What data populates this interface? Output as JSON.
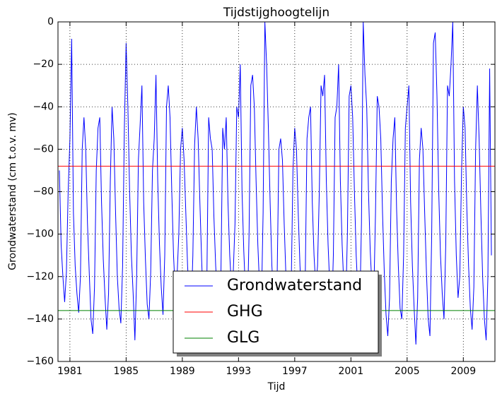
{
  "chart_data": {
    "type": "line",
    "title": "Tijdstijghoogtelijn",
    "x_label": "Tijd",
    "y_label": "Grondwaterstand (cm t.o.v. mv)",
    "xlim": [
      1980.15,
      2011.25
    ],
    "ylim": [
      -160,
      0
    ],
    "xticks": [
      1981,
      1985,
      1989,
      1993,
      1997,
      2001,
      2005,
      2009
    ],
    "yticks": [
      {
        "value": -160,
        "label": "−160"
      },
      {
        "value": -140,
        "label": "−140"
      },
      {
        "value": -120,
        "label": "−120"
      },
      {
        "value": -100,
        "label": "−100"
      },
      {
        "value": -80,
        "label": "−80"
      },
      {
        "value": -60,
        "label": "−60"
      },
      {
        "value": -40,
        "label": "−40"
      },
      {
        "value": -20,
        "label": "−20"
      },
      0
    ],
    "grid": true,
    "legend": "lower center",
    "series": [
      {
        "name": "Grondwaterstand",
        "color": "#0000ff",
        "x": [
          1980.25,
          1980.375,
          1980.5,
          1980.625,
          1980.75,
          1980.875,
          1981,
          1981.125,
          1981.25,
          1981.375,
          1981.5,
          1981.625,
          1981.75,
          1981.875,
          1982,
          1982.125,
          1982.25,
          1982.375,
          1982.5,
          1982.625,
          1982.75,
          1982.875,
          1983,
          1983.125,
          1983.25,
          1983.375,
          1983.5,
          1983.625,
          1983.75,
          1983.875,
          1984,
          1984.125,
          1984.25,
          1984.375,
          1984.5,
          1984.625,
          1984.75,
          1984.875,
          1985,
          1985.125,
          1985.25,
          1985.375,
          1985.5,
          1985.625,
          1985.75,
          1985.875,
          1986,
          1986.125,
          1986.25,
          1986.375,
          1986.5,
          1986.625,
          1986.75,
          1986.875,
          1987,
          1987.125,
          1987.25,
          1987.375,
          1987.5,
          1987.625,
          1987.75,
          1987.875,
          1988,
          1988.125,
          1988.25,
          1988.375,
          1988.5,
          1988.625,
          1988.75,
          1988.875,
          1989,
          1989.125,
          1989.25,
          1989.375,
          1989.5,
          1989.625,
          1989.75,
          1989.875,
          1990,
          1990.125,
          1990.25,
          1990.375,
          1990.5,
          1990.625,
          1990.75,
          1990.875,
          1991,
          1991.125,
          1991.25,
          1991.375,
          1991.5,
          1991.625,
          1991.75,
          1991.875,
          1992,
          1992.125,
          1992.25,
          1992.375,
          1992.5,
          1992.625,
          1992.75,
          1992.875,
          1993,
          1993.125,
          1993.25,
          1993.375,
          1993.5,
          1993.625,
          1993.75,
          1993.875,
          1994,
          1994.125,
          1994.25,
          1994.375,
          1994.5,
          1994.625,
          1994.75,
          1994.875,
          1995,
          1995.125,
          1995.25,
          1995.375,
          1995.5,
          1995.625,
          1995.75,
          1995.875,
          1996,
          1996.125,
          1996.25,
          1996.375,
          1996.5,
          1996.625,
          1996.75,
          1996.875,
          1997,
          1997.125,
          1997.25,
          1997.375,
          1997.5,
          1997.625,
          1997.75,
          1997.875,
          1998,
          1998.125,
          1998.25,
          1998.375,
          1998.5,
          1998.625,
          1998.75,
          1998.875,
          1999,
          1999.125,
          1999.25,
          1999.375,
          1999.5,
          1999.625,
          1999.75,
          1999.875,
          2000,
          2000.125,
          2000.25,
          2000.375,
          2000.5,
          2000.625,
          2000.75,
          2000.875,
          2001,
          2001.125,
          2001.25,
          2001.375,
          2001.5,
          2001.625,
          2001.75,
          2001.875,
          2002,
          2002.125,
          2002.25,
          2002.375,
          2002.5,
          2002.625,
          2002.75,
          2002.875,
          2003,
          2003.125,
          2003.25,
          2003.375,
          2003.5,
          2003.625,
          2003.75,
          2003.875,
          2004,
          2004.125,
          2004.25,
          2004.375,
          2004.5,
          2004.625,
          2004.75,
          2004.875,
          2005,
          2005.125,
          2005.25,
          2005.375,
          2005.5,
          2005.625,
          2005.75,
          2005.875,
          2006,
          2006.125,
          2006.25,
          2006.375,
          2006.5,
          2006.625,
          2006.75,
          2006.875,
          2007,
          2007.125,
          2007.25,
          2007.375,
          2007.5,
          2007.625,
          2007.75,
          2007.875,
          2008,
          2008.125,
          2008.25,
          2008.375,
          2008.5,
          2008.625,
          2008.75,
          2008.875,
          2009,
          2009.125,
          2009.25,
          2009.375,
          2009.5,
          2009.625,
          2009.75,
          2009.875,
          2010,
          2010.125,
          2010.25,
          2010.375,
          2010.5,
          2010.625,
          2010.75,
          2010.875,
          2011
        ],
        "values": [
          -70,
          -105,
          -120,
          -132,
          -118,
          -80,
          -55,
          -8,
          -90,
          -115,
          -128,
          -137,
          -120,
          -60,
          -45,
          -60,
          -95,
          -118,
          -140,
          -147,
          -125,
          -70,
          -50,
          -45,
          -85,
          -112,
          -130,
          -145,
          -128,
          -75,
          -40,
          -55,
          -90,
          -120,
          -135,
          -142,
          -115,
          -50,
          -10,
          -40,
          -80,
          -110,
          -128,
          -150,
          -120,
          -65,
          -48,
          -30,
          -85,
          -112,
          -133,
          -140,
          -118,
          -70,
          -55,
          -25,
          -75,
          -105,
          -125,
          -138,
          -110,
          -40,
          -30,
          -45,
          -80,
          -110,
          -128,
          -120,
          -100,
          -60,
          -50,
          -65,
          -90,
          -115,
          -130,
          -138,
          -110,
          -58,
          -40,
          -55,
          -85,
          -112,
          -135,
          -143,
          -120,
          -45,
          -55,
          -60,
          -92,
          -115,
          -130,
          -140,
          -118,
          -50,
          -60,
          -45,
          -85,
          -110,
          -125,
          -118,
          -95,
          -40,
          -45,
          -20,
          -80,
          -108,
          -128,
          -140,
          -100,
          -30,
          -25,
          -40,
          -75,
          -105,
          -125,
          -135,
          -90,
          0,
          -20,
          -50,
          -85,
          -115,
          -130,
          -145,
          -120,
          -60,
          -55,
          -65,
          -95,
          -120,
          -138,
          -145,
          -125,
          -70,
          -50,
          -60,
          -90,
          -115,
          -132,
          -146,
          -120,
          -55,
          -45,
          -40,
          -85,
          -110,
          -125,
          -115,
          -80,
          -30,
          -35,
          -25,
          -75,
          -105,
          -125,
          -140,
          -110,
          -45,
          -40,
          -20,
          -75,
          -105,
          -125,
          -135,
          -100,
          -35,
          -30,
          -45,
          -80,
          -110,
          -128,
          -138,
          -95,
          0,
          -25,
          -40,
          -80,
          -108,
          -125,
          -130,
          -90,
          -35,
          -40,
          -55,
          -90,
          -118,
          -138,
          -148,
          -130,
          -75,
          -55,
          -45,
          -88,
          -115,
          -135,
          -140,
          -110,
          -50,
          -40,
          -30,
          -85,
          -115,
          -135,
          -152,
          -130,
          -65,
          -50,
          -60,
          -90,
          -118,
          -140,
          -148,
          -100,
          -10,
          -5,
          -35,
          -80,
          -110,
          -128,
          -140,
          -105,
          -30,
          -35,
          -20,
          0,
          -75,
          -110,
          -130,
          -120,
          -70,
          -40,
          -50,
          -88,
          -115,
          -135,
          -145,
          -125,
          -60,
          -30,
          -55,
          -90,
          -120,
          -140,
          -150,
          -120,
          -22,
          -110
        ]
      },
      {
        "name": "GHG",
        "color": "#ff0000",
        "x": [
          1980.15,
          2011.25
        ],
        "values": [
          -68,
          -68
        ]
      },
      {
        "name": "GLG",
        "color": "#008000",
        "x": [
          1980.15,
          2011.25
        ],
        "values": [
          -136,
          -136
        ]
      }
    ]
  }
}
